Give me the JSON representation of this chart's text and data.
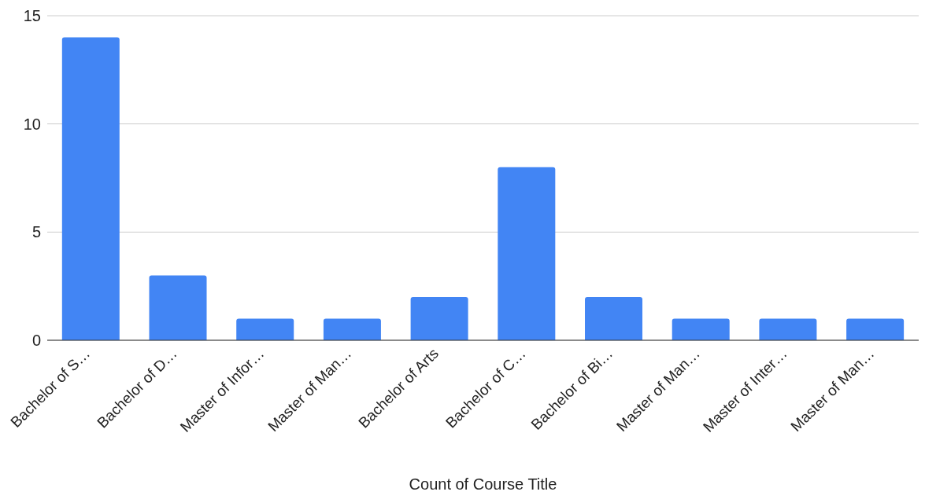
{
  "chart_data": {
    "type": "bar",
    "xlabel": "Count of Course Title",
    "categories": [
      "Bachelor of S…",
      "Bachelor of D…",
      "Master of Infor…",
      "Master of Man…",
      "Bachelor of Arts",
      "Bachelor of C…",
      "Bachelor of Bi…",
      "Master of Man…",
      "Master of Inter…",
      "Master of Man…"
    ],
    "values": [
      14,
      3,
      1,
      1,
      2,
      8,
      2,
      1,
      1,
      1
    ],
    "color": "#4285f4",
    "ylim": [
      0,
      15
    ],
    "yticks": [
      0,
      5,
      10,
      15
    ],
    "grid": "y"
  }
}
